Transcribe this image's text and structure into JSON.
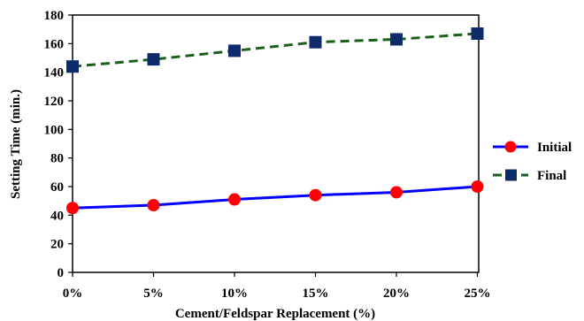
{
  "chart_data": {
    "type": "line",
    "title": "",
    "xlabel": "Cement/Feldspar Replacement (%)",
    "ylabel": "Setting Time (min.)",
    "categories": [
      "0%",
      "5%",
      "10%",
      "15%",
      "20%",
      "25%"
    ],
    "ylim": [
      0,
      180
    ],
    "yticks": [
      0,
      20,
      40,
      60,
      80,
      100,
      120,
      140,
      160,
      180
    ],
    "ytick_labels": [
      "0",
      "20",
      "40",
      "60",
      "80",
      "100",
      "120",
      "140",
      "160",
      "180"
    ],
    "grid": false,
    "legend_position": "right",
    "series": [
      {
        "name": "Initial",
        "values": [
          45,
          47,
          51,
          54,
          56,
          60
        ],
        "line_color": "#0000ff",
        "marker_color": "#ff0000",
        "marker": "circle",
        "line_style": "solid"
      },
      {
        "name": "Final",
        "values": [
          144,
          149,
          155,
          161,
          163,
          167
        ],
        "line_color": "#1a5e1a",
        "marker_color": "#0d2b6b",
        "marker": "square",
        "line_style": "dashed"
      }
    ]
  }
}
